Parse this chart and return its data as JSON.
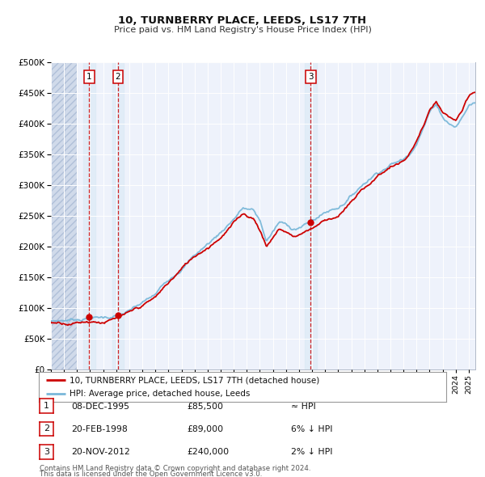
{
  "title": "10, TURNBERRY PLACE, LEEDS, LS17 7TH",
  "subtitle": "Price paid vs. HM Land Registry's House Price Index (HPI)",
  "legend_line1": "10, TURNBERRY PLACE, LEEDS, LS17 7TH (detached house)",
  "legend_line2": "HPI: Average price, detached house, Leeds",
  "footer1": "Contains HM Land Registry data © Crown copyright and database right 2024.",
  "footer2": "This data is licensed under the Open Government Licence v3.0.",
  "table": [
    {
      "num": "1",
      "date": "08-DEC-1995",
      "price": "£85,500",
      "rel": "≈ HPI"
    },
    {
      "num": "2",
      "date": "20-FEB-1998",
      "price": "£89,000",
      "rel": "6% ↓ HPI"
    },
    {
      "num": "3",
      "date": "20-NOV-2012",
      "price": "£240,000",
      "rel": "2% ↓ HPI"
    }
  ],
  "sale_dates": [
    1995.93,
    1998.13,
    2012.89
  ],
  "sale_prices": [
    85500,
    89000,
    240000
  ],
  "hpi_color": "#7ab8d9",
  "price_color": "#cc0000",
  "bg_color": "#ffffff",
  "plot_bg": "#eef2fb",
  "grid_color": "#ffffff",
  "ylim": [
    0,
    500000
  ],
  "xlim_start": 1993.0,
  "xlim_end": 2025.5,
  "hatch_end": 1995.0
}
